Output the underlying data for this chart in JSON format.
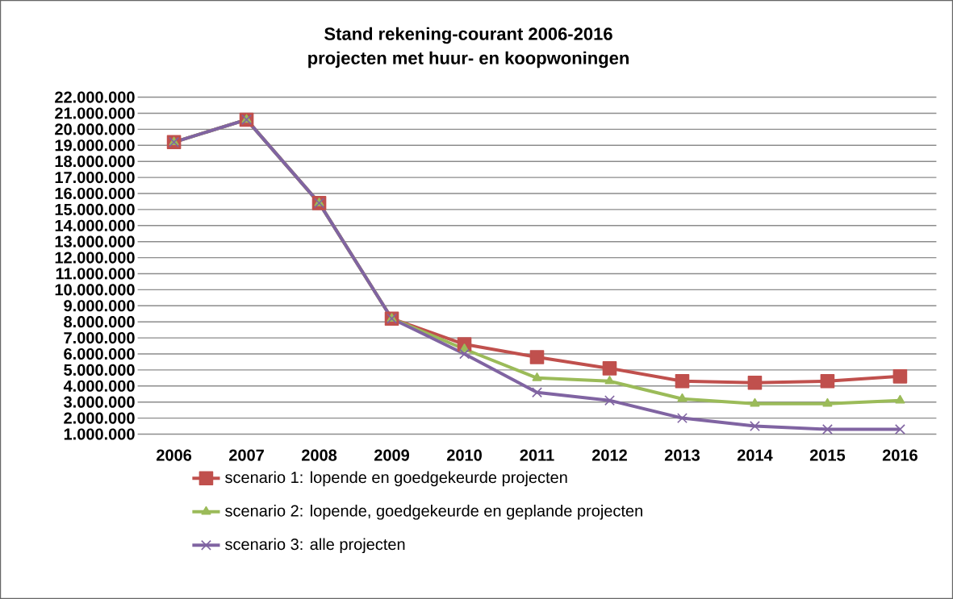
{
  "chart_data": {
    "type": "line",
    "title": "Stand rekening-courant 2006-2016",
    "subtitle": "projecten met huur- en koopwoningen",
    "categories": [
      "2006",
      "2007",
      "2008",
      "2009",
      "2010",
      "2011",
      "2012",
      "2013",
      "2014",
      "2015",
      "2016"
    ],
    "series": [
      {
        "name": "scenario 1: lopende en goedgekeurde projecten",
        "color": "#c0504d",
        "marker": "square",
        "values": [
          19200000,
          20600000,
          15400000,
          8200000,
          6600000,
          5800000,
          5100000,
          4300000,
          4200000,
          4300000,
          4600000
        ]
      },
      {
        "name": "scenario 2: lopende, goedgekeurde en geplande projecten",
        "color": "#9bbb59",
        "marker": "triangle",
        "values": [
          19200000,
          20600000,
          15400000,
          8200000,
          6300000,
          4500000,
          4300000,
          3200000,
          2900000,
          2900000,
          3100000
        ]
      },
      {
        "name": "scenario 3: alle projecten",
        "color": "#8064a2",
        "marker": "cross",
        "values": [
          19200000,
          20600000,
          15400000,
          8200000,
          6000000,
          3600000,
          3100000,
          2000000,
          1500000,
          1300000,
          1300000
        ]
      }
    ],
    "ylim": [
      1000000,
      22000000
    ],
    "yticks": [
      {
        "value": 1000000,
        "label": "1.000.000"
      },
      {
        "value": 2000000,
        "label": "2.000.000"
      },
      {
        "value": 3000000,
        "label": "3.000.000"
      },
      {
        "value": 4000000,
        "label": "4.000.000"
      },
      {
        "value": 5000000,
        "label": "5.000.000"
      },
      {
        "value": 6000000,
        "label": "6.000.000"
      },
      {
        "value": 7000000,
        "label": "7.000.000"
      },
      {
        "value": 8000000,
        "label": "8.000.000"
      },
      {
        "value": 9000000,
        "label": "9.000.000"
      },
      {
        "value": 10000000,
        "label": "10.000.000"
      },
      {
        "value": 11000000,
        "label": "11.000.000"
      },
      {
        "value": 12000000,
        "label": "12.000.000"
      },
      {
        "value": 13000000,
        "label": "13.000.000"
      },
      {
        "value": 14000000,
        "label": "14.000.000"
      },
      {
        "value": 15000000,
        "label": "15.000.000"
      },
      {
        "value": 16000000,
        "label": "16.000.000"
      },
      {
        "value": 17000000,
        "label": "17.000.000"
      },
      {
        "value": 18000000,
        "label": "18.000.000"
      },
      {
        "value": 19000000,
        "label": "19.000.000"
      },
      {
        "value": 20000000,
        "label": "20.000.000"
      },
      {
        "value": 21000000,
        "label": "21.000.000"
      },
      {
        "value": 22000000,
        "label": "22.000.000"
      }
    ],
    "grid": "y",
    "legend": "bottom"
  }
}
